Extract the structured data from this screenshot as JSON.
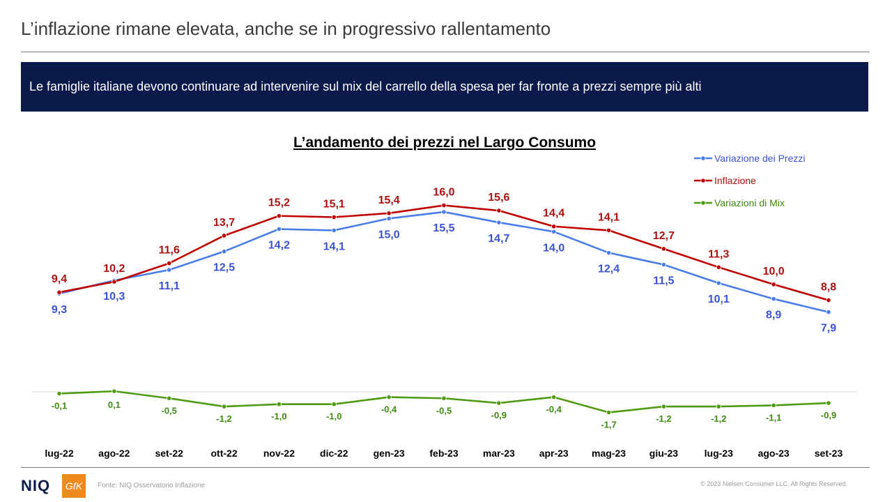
{
  "header": {
    "title": "L’inflazione rimane elevata, anche se in progressivo rallentamento"
  },
  "banner": {
    "text": "Le famiglie italiane devono continuare ad intervenire sul mix del carrello della spesa per far fronte a prezzi  sempre più alti"
  },
  "footer": {
    "logo_niq": "NIQ",
    "logo_gfk": "GfK",
    "source": "Fonte: NIQ Osservatorio Inflazione",
    "copyright": "© 2023  Nielsen Consumer LLC. All Rights Reserved."
  },
  "chart_data": {
    "type": "line",
    "title": "L’andamento dei prezzi nel Largo Consumo",
    "categories": [
      "lug-22",
      "ago-22",
      "set-22",
      "ott-22",
      "nov-22",
      "dic-22",
      "gen-23",
      "feb-23",
      "mar-23",
      "apr-23",
      "mag-23",
      "giu-23",
      "lug-23",
      "ago-23",
      "set-23"
    ],
    "series": [
      {
        "name": "Variazione dei Prezzi",
        "color": "#4a7de8",
        "label_color": "#3b52d6",
        "values": [
          9.3,
          10.3,
          11.1,
          12.5,
          14.2,
          14.1,
          15.0,
          15.5,
          14.7,
          14.0,
          12.4,
          11.5,
          10.1,
          8.9,
          7.9
        ],
        "labels": [
          "9,3",
          "10,3",
          "11,1",
          "12,5",
          "14,2",
          "14,1",
          "15,0",
          "15,5",
          "14,7",
          "14,0",
          "12,4",
          "11,5",
          "10,1",
          "8,9",
          "7,9"
        ]
      },
      {
        "name": "Inflazione",
        "color": "#c00000",
        "label_color": "#b01010",
        "values": [
          9.4,
          10.2,
          11.6,
          13.7,
          15.2,
          15.1,
          15.4,
          16.0,
          15.6,
          14.4,
          14.1,
          12.7,
          11.3,
          10.0,
          8.8
        ],
        "labels": [
          "9,4",
          "10,2",
          "11,6",
          "13,7",
          "15,2",
          "15,1",
          "15,4",
          "16,0",
          "15,6",
          "14,4",
          "14,1",
          "12,7",
          "11,3",
          "10,0",
          "8,8"
        ]
      },
      {
        "name": "Variazioni di Mix",
        "color": "#4f9a12",
        "label_color": "#3f8a10",
        "values": [
          -0.1,
          0.1,
          -0.5,
          -1.2,
          -1.0,
          -1.0,
          -0.4,
          -0.5,
          -0.9,
          -0.4,
          -1.7,
          -1.2,
          -1.2,
          -1.1,
          -0.9
        ],
        "labels": [
          "-0,1",
          "0,1",
          "-0,5",
          "-1,2",
          "-1,0",
          "-1,0",
          "-0,4",
          "-0,5",
          "-0,9",
          "-0,4",
          "-1,7",
          "-1,2",
          "-1,2",
          "-1,1",
          "-0,9"
        ]
      }
    ],
    "legend_position": "top-right",
    "grid": false
  }
}
